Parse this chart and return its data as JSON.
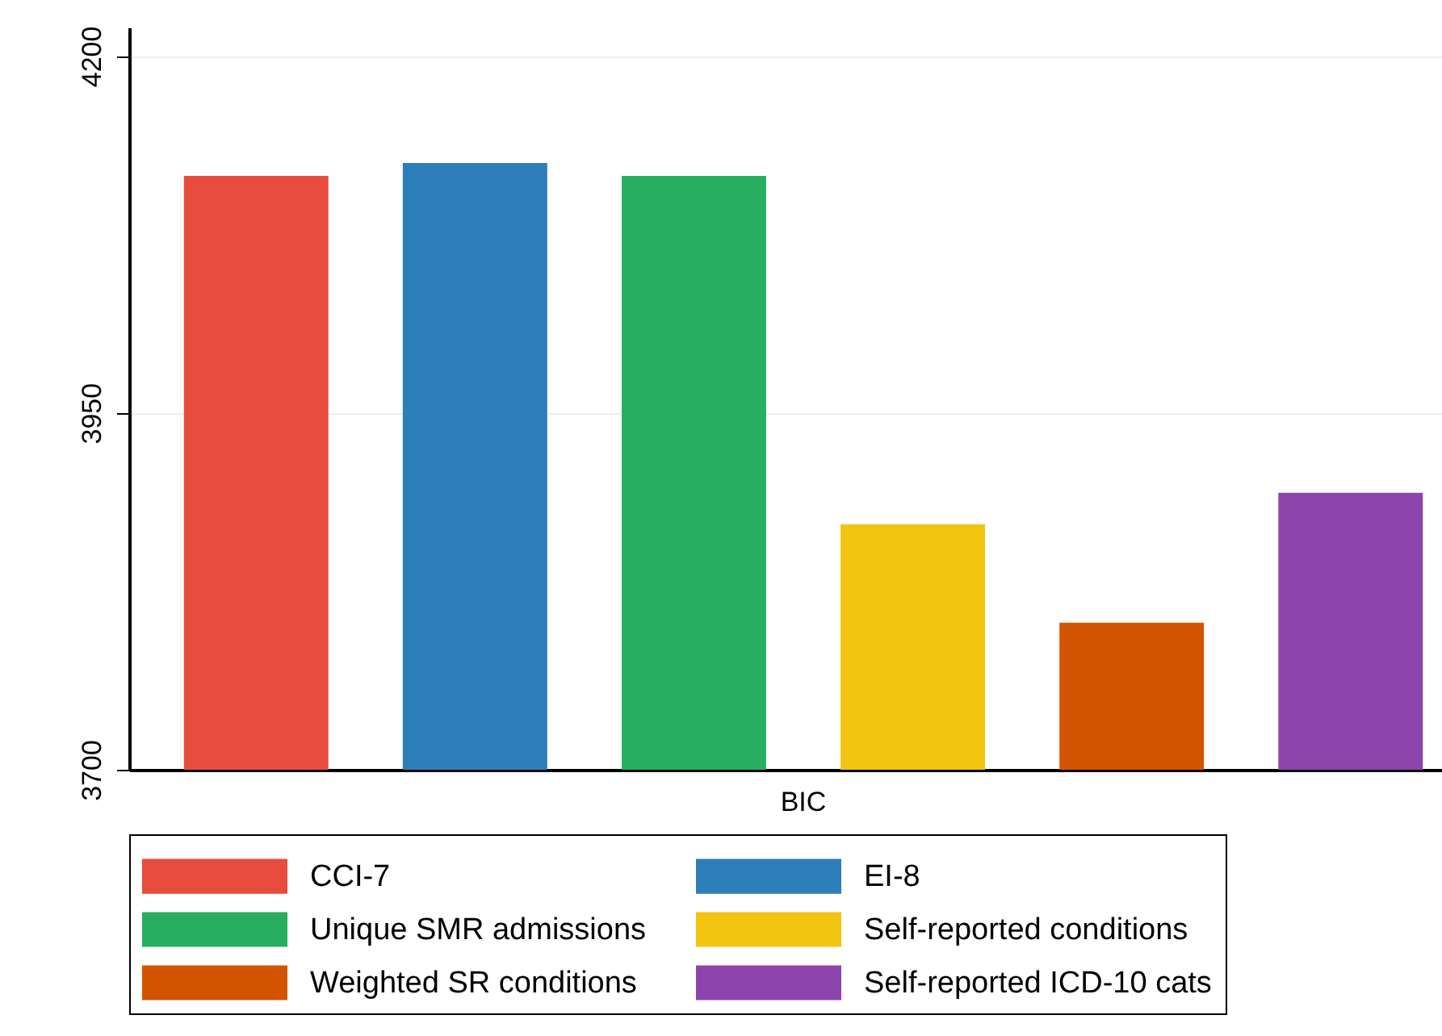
{
  "chart_data": {
    "type": "bar",
    "categories": [
      "BIC"
    ],
    "series": [
      {
        "name": "CCI-7",
        "color": "#e74c3c",
        "values": [
          4116
        ]
      },
      {
        "name": "EI-8",
        "color": "#2c7fb8",
        "values": [
          4125
        ]
      },
      {
        "name": "Unique SMR admissions",
        "color": "#27ae60",
        "values": [
          4116
        ]
      },
      {
        "name": "Self-reported conditions",
        "color": "#f1c40f",
        "values": [
          3872
        ]
      },
      {
        "name": "Weighted SR conditions",
        "color": "#d35400",
        "values": [
          3803
        ]
      },
      {
        "name": "Self-reported ICD-10 cats",
        "color": "#8e44ad",
        "values": [
          3894
        ]
      }
    ],
    "ylim": [
      3700,
      4220
    ],
    "yticks": [
      3700,
      3950,
      4200
    ],
    "grid": "y",
    "legend": "bottom"
  }
}
